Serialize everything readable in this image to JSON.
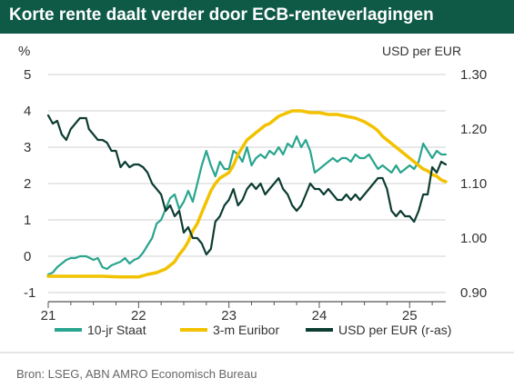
{
  "header": {
    "title": "Korte rente daalt verder door ECB-renteverlagingen"
  },
  "footer": {
    "source": "Bron: LSEG, ABN AMRO Economisch Bureau"
  },
  "colors": {
    "staat": "#2aa58f",
    "euribor": "#f2c200",
    "usd": "#0d3d33",
    "title_bg": "#0e5a47",
    "grid": "#d0d0d0"
  },
  "chart_data": {
    "type": "line",
    "title": "Korte rente daalt verder door ECB-renteverlagingen",
    "y_left": {
      "label": "%",
      "ticks": [
        5,
        4,
        3,
        2,
        1,
        0,
        -1
      ],
      "range": [
        -1,
        5
      ]
    },
    "y_right": {
      "label": "USD per EUR",
      "ticks": [
        "1.30",
        "1.20",
        "1.10",
        "1.00",
        "0.90"
      ],
      "range": [
        0.9,
        1.3
      ]
    },
    "x_ticks": [
      {
        "label": "21",
        "x": 2021.0
      },
      {
        "label": "22",
        "x": 2022.0
      },
      {
        "label": "23",
        "x": 2023.0
      },
      {
        "label": "24",
        "x": 2024.0
      },
      {
        "label": "25",
        "x": 2025.0
      }
    ],
    "x_range": [
      2021.0,
      2025.4
    ],
    "legend_position": "bottom",
    "grid": "horizontal",
    "series": [
      {
        "name": "10-jr Staat",
        "axis": "left",
        "color": "#2aa58f",
        "points": [
          [
            2021.0,
            -0.5
          ],
          [
            2021.05,
            -0.45
          ],
          [
            2021.1,
            -0.3
          ],
          [
            2021.15,
            -0.2
          ],
          [
            2021.2,
            -0.1
          ],
          [
            2021.25,
            -0.05
          ],
          [
            2021.3,
            -0.05
          ],
          [
            2021.35,
            0.0
          ],
          [
            2021.42,
            0.0
          ],
          [
            2021.5,
            -0.1
          ],
          [
            2021.55,
            -0.05
          ],
          [
            2021.6,
            -0.3
          ],
          [
            2021.65,
            -0.35
          ],
          [
            2021.7,
            -0.25
          ],
          [
            2021.75,
            -0.2
          ],
          [
            2021.8,
            -0.15
          ],
          [
            2021.85,
            -0.05
          ],
          [
            2021.9,
            -0.2
          ],
          [
            2021.95,
            -0.1
          ],
          [
            2022.0,
            -0.05
          ],
          [
            2022.05,
            0.1
          ],
          [
            2022.1,
            0.3
          ],
          [
            2022.15,
            0.5
          ],
          [
            2022.2,
            0.9
          ],
          [
            2022.25,
            1.0
          ],
          [
            2022.3,
            1.3
          ],
          [
            2022.35,
            1.6
          ],
          [
            2022.4,
            1.7
          ],
          [
            2022.45,
            1.3
          ],
          [
            2022.5,
            1.5
          ],
          [
            2022.55,
            1.8
          ],
          [
            2022.6,
            1.5
          ],
          [
            2022.65,
            2.0
          ],
          [
            2022.7,
            2.5
          ],
          [
            2022.75,
            2.9
          ],
          [
            2022.8,
            2.5
          ],
          [
            2022.85,
            2.2
          ],
          [
            2022.9,
            2.6
          ],
          [
            2022.95,
            2.4
          ],
          [
            2023.0,
            2.4
          ],
          [
            2023.05,
            2.9
          ],
          [
            2023.1,
            2.8
          ],
          [
            2023.15,
            2.6
          ],
          [
            2023.2,
            3.0
          ],
          [
            2023.25,
            2.5
          ],
          [
            2023.3,
            2.7
          ],
          [
            2023.35,
            2.8
          ],
          [
            2023.4,
            2.7
          ],
          [
            2023.45,
            2.9
          ],
          [
            2023.5,
            2.8
          ],
          [
            2023.55,
            3.0
          ],
          [
            2023.6,
            2.8
          ],
          [
            2023.65,
            3.1
          ],
          [
            2023.7,
            3.0
          ],
          [
            2023.75,
            3.3
          ],
          [
            2023.8,
            3.0
          ],
          [
            2023.85,
            3.2
          ],
          [
            2023.9,
            2.9
          ],
          [
            2023.95,
            2.3
          ],
          [
            2024.0,
            2.4
          ],
          [
            2024.05,
            2.5
          ],
          [
            2024.1,
            2.6
          ],
          [
            2024.15,
            2.7
          ],
          [
            2024.2,
            2.6
          ],
          [
            2024.25,
            2.7
          ],
          [
            2024.3,
            2.7
          ],
          [
            2024.35,
            2.6
          ],
          [
            2024.4,
            2.8
          ],
          [
            2024.45,
            2.7
          ],
          [
            2024.5,
            2.7
          ],
          [
            2024.55,
            2.8
          ],
          [
            2024.6,
            2.6
          ],
          [
            2024.65,
            2.4
          ],
          [
            2024.7,
            2.5
          ],
          [
            2024.75,
            2.4
          ],
          [
            2024.8,
            2.3
          ],
          [
            2024.85,
            2.5
          ],
          [
            2024.9,
            2.3
          ],
          [
            2024.95,
            2.4
          ],
          [
            2025.0,
            2.5
          ],
          [
            2025.05,
            2.4
          ],
          [
            2025.1,
            2.6
          ],
          [
            2025.15,
            3.1
          ],
          [
            2025.2,
            2.9
          ],
          [
            2025.25,
            2.7
          ],
          [
            2025.3,
            2.9
          ],
          [
            2025.35,
            2.8
          ],
          [
            2025.4,
            2.8
          ]
        ]
      },
      {
        "name": "3-m Euribor",
        "axis": "left",
        "color": "#f2c200",
        "points": [
          [
            2021.0,
            -0.55
          ],
          [
            2021.2,
            -0.55
          ],
          [
            2021.4,
            -0.55
          ],
          [
            2021.6,
            -0.55
          ],
          [
            2021.8,
            -0.57
          ],
          [
            2022.0,
            -0.57
          ],
          [
            2022.1,
            -0.5
          ],
          [
            2022.2,
            -0.45
          ],
          [
            2022.3,
            -0.35
          ],
          [
            2022.4,
            -0.15
          ],
          [
            2022.45,
            0.05
          ],
          [
            2022.5,
            0.2
          ],
          [
            2022.55,
            0.4
          ],
          [
            2022.6,
            0.7
          ],
          [
            2022.65,
            0.9
          ],
          [
            2022.7,
            1.2
          ],
          [
            2022.75,
            1.5
          ],
          [
            2022.8,
            1.8
          ],
          [
            2022.85,
            2.0
          ],
          [
            2022.9,
            2.15
          ],
          [
            2023.0,
            2.3
          ],
          [
            2023.05,
            2.5
          ],
          [
            2023.1,
            2.8
          ],
          [
            2023.15,
            3.0
          ],
          [
            2023.2,
            3.2
          ],
          [
            2023.25,
            3.3
          ],
          [
            2023.3,
            3.4
          ],
          [
            2023.35,
            3.5
          ],
          [
            2023.4,
            3.6
          ],
          [
            2023.45,
            3.65
          ],
          [
            2023.5,
            3.75
          ],
          [
            2023.55,
            3.85
          ],
          [
            2023.6,
            3.9
          ],
          [
            2023.65,
            3.95
          ],
          [
            2023.7,
            4.0
          ],
          [
            2023.75,
            4.0
          ],
          [
            2023.8,
            4.0
          ],
          [
            2023.9,
            3.95
          ],
          [
            2024.0,
            3.95
          ],
          [
            2024.1,
            3.9
          ],
          [
            2024.2,
            3.9
          ],
          [
            2024.3,
            3.85
          ],
          [
            2024.4,
            3.8
          ],
          [
            2024.5,
            3.7
          ],
          [
            2024.6,
            3.55
          ],
          [
            2024.65,
            3.45
          ],
          [
            2024.7,
            3.3
          ],
          [
            2024.75,
            3.2
          ],
          [
            2024.8,
            3.1
          ],
          [
            2024.85,
            3.0
          ],
          [
            2024.9,
            2.9
          ],
          [
            2024.95,
            2.8
          ],
          [
            2025.0,
            2.7
          ],
          [
            2025.05,
            2.6
          ],
          [
            2025.1,
            2.5
          ],
          [
            2025.15,
            2.4
          ],
          [
            2025.2,
            2.35
          ],
          [
            2025.25,
            2.25
          ],
          [
            2025.3,
            2.2
          ],
          [
            2025.35,
            2.1
          ],
          [
            2025.4,
            2.05
          ]
        ]
      },
      {
        "name": "USD per EUR (r-as)",
        "axis": "right",
        "color": "#0d3d33",
        "points": [
          [
            2021.0,
            1.225
          ],
          [
            2021.05,
            1.21
          ],
          [
            2021.1,
            1.215
          ],
          [
            2021.15,
            1.19
          ],
          [
            2021.2,
            1.18
          ],
          [
            2021.25,
            1.2
          ],
          [
            2021.3,
            1.21
          ],
          [
            2021.35,
            1.22
          ],
          [
            2021.42,
            1.22
          ],
          [
            2021.45,
            1.2
          ],
          [
            2021.5,
            1.19
          ],
          [
            2021.55,
            1.18
          ],
          [
            2021.6,
            1.18
          ],
          [
            2021.65,
            1.175
          ],
          [
            2021.7,
            1.16
          ],
          [
            2021.75,
            1.16
          ],
          [
            2021.8,
            1.13
          ],
          [
            2021.85,
            1.14
          ],
          [
            2021.9,
            1.13
          ],
          [
            2021.95,
            1.135
          ],
          [
            2022.0,
            1.135
          ],
          [
            2022.05,
            1.13
          ],
          [
            2022.1,
            1.12
          ],
          [
            2022.15,
            1.1
          ],
          [
            2022.2,
            1.09
          ],
          [
            2022.25,
            1.08
          ],
          [
            2022.3,
            1.05
          ],
          [
            2022.35,
            1.06
          ],
          [
            2022.4,
            1.04
          ],
          [
            2022.45,
            1.05
          ],
          [
            2022.5,
            1.01
          ],
          [
            2022.55,
            1.02
          ],
          [
            2022.6,
            1.0
          ],
          [
            2022.65,
            1.0
          ],
          [
            2022.7,
            0.99
          ],
          [
            2022.75,
            0.97
          ],
          [
            2022.8,
            0.98
          ],
          [
            2022.85,
            1.03
          ],
          [
            2022.9,
            1.04
          ],
          [
            2022.95,
            1.06
          ],
          [
            2023.0,
            1.07
          ],
          [
            2023.05,
            1.09
          ],
          [
            2023.1,
            1.06
          ],
          [
            2023.15,
            1.07
          ],
          [
            2023.2,
            1.09
          ],
          [
            2023.25,
            1.1
          ],
          [
            2023.3,
            1.09
          ],
          [
            2023.35,
            1.1
          ],
          [
            2023.4,
            1.08
          ],
          [
            2023.45,
            1.09
          ],
          [
            2023.5,
            1.1
          ],
          [
            2023.55,
            1.11
          ],
          [
            2023.6,
            1.09
          ],
          [
            2023.65,
            1.08
          ],
          [
            2023.7,
            1.06
          ],
          [
            2023.75,
            1.05
          ],
          [
            2023.8,
            1.06
          ],
          [
            2023.85,
            1.08
          ],
          [
            2023.9,
            1.1
          ],
          [
            2023.95,
            1.09
          ],
          [
            2024.0,
            1.09
          ],
          [
            2024.05,
            1.08
          ],
          [
            2024.1,
            1.09
          ],
          [
            2024.15,
            1.08
          ],
          [
            2024.2,
            1.07
          ],
          [
            2024.25,
            1.07
          ],
          [
            2024.3,
            1.08
          ],
          [
            2024.35,
            1.07
          ],
          [
            2024.4,
            1.08
          ],
          [
            2024.45,
            1.07
          ],
          [
            2024.5,
            1.08
          ],
          [
            2024.55,
            1.09
          ],
          [
            2024.6,
            1.1
          ],
          [
            2024.65,
            1.11
          ],
          [
            2024.7,
            1.11
          ],
          [
            2024.75,
            1.09
          ],
          [
            2024.8,
            1.05
          ],
          [
            2024.85,
            1.04
          ],
          [
            2024.9,
            1.05
          ],
          [
            2024.95,
            1.04
          ],
          [
            2025.0,
            1.04
          ],
          [
            2025.05,
            1.03
          ],
          [
            2025.1,
            1.05
          ],
          [
            2025.15,
            1.08
          ],
          [
            2025.2,
            1.08
          ],
          [
            2025.25,
            1.13
          ],
          [
            2025.3,
            1.12
          ],
          [
            2025.35,
            1.14
          ],
          [
            2025.4,
            1.135
          ]
        ]
      }
    ]
  }
}
